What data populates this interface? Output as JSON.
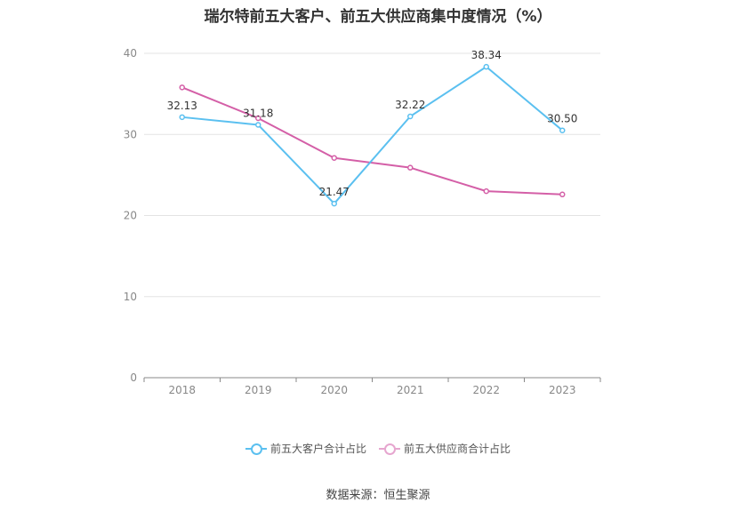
{
  "chart_data": {
    "type": "line",
    "title": "瑞尔特前五大客户、前五大供应商集中度情况（%）",
    "categories": [
      "2018",
      "2019",
      "2020",
      "2021",
      "2022",
      "2023"
    ],
    "ylim": [
      0,
      40
    ],
    "yticks": [
      "0",
      "10",
      "20",
      "30",
      "40"
    ],
    "grid": true,
    "legend_position": "bottom",
    "series": [
      {
        "name": "前五大客户合计占比",
        "color": "#5bc0f0",
        "values": [
          32.13,
          31.18,
          21.47,
          32.22,
          38.34,
          30.5
        ],
        "labels": [
          "32.13",
          "31.18",
          "21.47",
          "32.22",
          "38.34",
          "30.50"
        ]
      },
      {
        "name": "前五大供应商合计占比",
        "color": "#d45fa7",
        "values": [
          35.8,
          32.0,
          27.1,
          25.9,
          23.0,
          22.6
        ]
      }
    ]
  },
  "source": "数据来源：恒生聚源"
}
